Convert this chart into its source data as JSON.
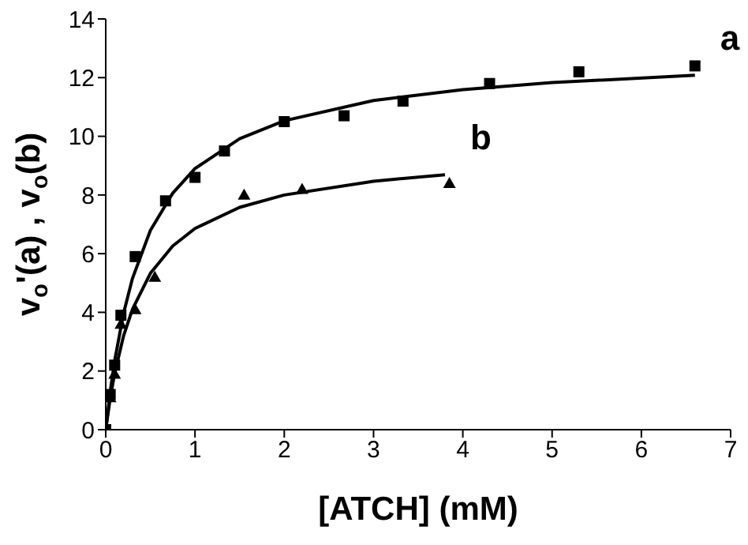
{
  "chart_data": {
    "type": "scatter",
    "xlabel": "[ATCH] (mM)",
    "ylabel": "v$_{o}$'(a) , v$_{o}$(b)",
    "xlim": [
      0,
      7
    ],
    "xticks": [
      0,
      1,
      2,
      3,
      4,
      5,
      6,
      7
    ],
    "ylim": [
      0,
      14
    ],
    "yticks": [
      0,
      2,
      4,
      6,
      8,
      10,
      12,
      14
    ],
    "grid": false,
    "legend": false,
    "series": [
      {
        "marker": "square",
        "color": "#000000",
        "x": [
          0,
          0.05,
          0.1,
          0.17,
          0.33,
          0.67,
          1.0,
          1.33,
          2.0,
          2.67,
          3.33,
          4.3,
          5.3,
          6.6
        ],
        "values": [
          0,
          1.2,
          2.2,
          3.9,
          5.9,
          7.8,
          8.6,
          9.5,
          10.5,
          10.7,
          11.2,
          11.8,
          12.2,
          12.4
        ]
      },
      {
        "marker": "triangle",
        "color": "#000000",
        "x": [
          0.05,
          0.1,
          0.17,
          0.33,
          0.55,
          1.55,
          2.2,
          3.85
        ],
        "values": [
          1.1,
          1.9,
          3.6,
          4.1,
          5.2,
          8.0,
          8.2,
          8.4
        ]
      },
      {
        "type": "line",
        "name": "a",
        "marker": "none",
        "line_style": "solid",
        "color": "#000000",
        "x": [
          0,
          0.05,
          0.1,
          0.2,
          0.3,
          0.5,
          0.75,
          1,
          1.5,
          2,
          3,
          4,
          5,
          6.6
        ],
        "values": [
          0,
          1.29,
          2.35,
          3.97,
          5.16,
          6.79,
          8.06,
          8.9,
          9.92,
          10.53,
          11.22,
          11.59,
          11.83,
          12.08
        ]
      },
      {
        "type": "line",
        "name": "b",
        "marker": "none",
        "line_style": "solid",
        "color": "#000000",
        "x": [
          0,
          0.05,
          0.1,
          0.2,
          0.3,
          0.5,
          0.75,
          1,
          1.5,
          2,
          3,
          3.8
        ],
        "values": [
          0,
          1.07,
          1.92,
          3.2,
          4.11,
          5.33,
          6.26,
          6.86,
          7.58,
          8.0,
          8.47,
          8.69
        ]
      }
    ]
  }
}
